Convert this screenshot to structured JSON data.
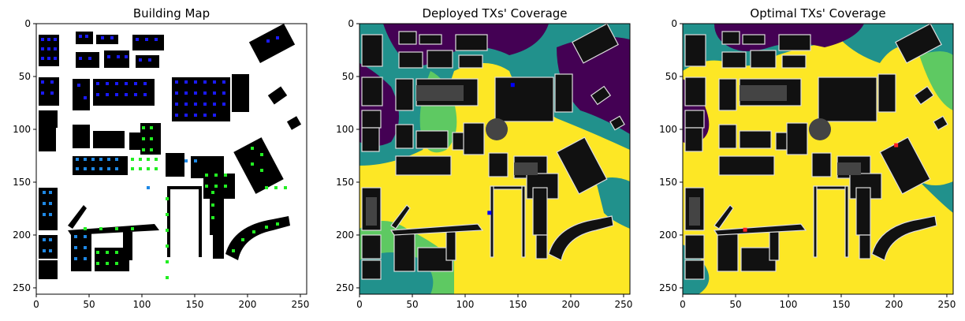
{
  "panels": [
    {
      "title": "Building Map"
    },
    {
      "title": "Deployed TXs' Coverage"
    },
    {
      "title": "Optimal TXs' Coverage"
    }
  ],
  "axes": {
    "xticks": [
      "0",
      "50",
      "100",
      "150",
      "200",
      "250"
    ],
    "yticks": [
      "0",
      "50",
      "100",
      "150",
      "200",
      "250"
    ],
    "range": [
      0,
      256
    ]
  },
  "colors": {
    "building": "#000000",
    "building_shade": "#222222",
    "dot_blue": "#1a1aff",
    "dot_mid": "#1e88e5",
    "dot_cyan": "#24c6f0",
    "dot_green": "#22ee22",
    "cov_yellow": "#fde725",
    "cov_green": "#5ec962",
    "cov_teal": "#21918c",
    "cov_purple": "#440154",
    "tx_blue": "#0000ff",
    "tx_red": "#ff2020"
  },
  "transmitters": {
    "deployed": [
      [
        145,
        58
      ],
      [
        123,
        179
      ]
    ],
    "optimal": [
      [
        202,
        115
      ],
      [
        59,
        195
      ]
    ]
  }
}
